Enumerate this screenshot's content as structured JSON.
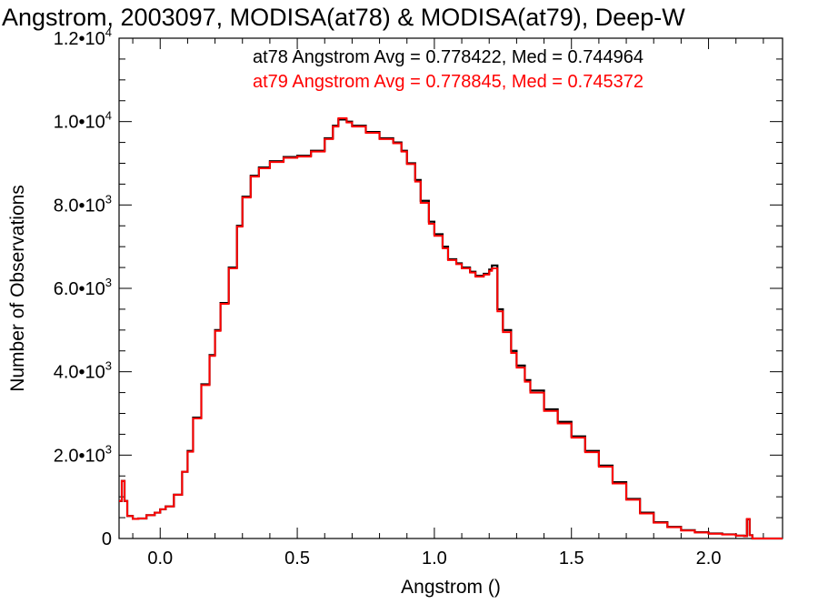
{
  "chart_data": {
    "type": "histogram",
    "title": "Angstrom, 2003097, MODISA(at78) & MODISA(at79), Deep-W",
    "xlabel": "Angstrom ()",
    "ylabel": "Number of Observations",
    "xlim": [
      -0.15,
      2.27
    ],
    "ylim": [
      0,
      12000
    ],
    "x_ticks": [
      {
        "value": 0.0,
        "label": "0.0"
      },
      {
        "value": 0.5,
        "label": "0.5"
      },
      {
        "value": 1.0,
        "label": "1.0"
      },
      {
        "value": 1.5,
        "label": "1.5"
      },
      {
        "value": 2.0,
        "label": "2.0"
      }
    ],
    "y_ticks": [
      {
        "value": 0,
        "mant": "0",
        "exp": ""
      },
      {
        "value": 2000,
        "mant": "2.0•10",
        "exp": "3"
      },
      {
        "value": 4000,
        "mant": "4.0•10",
        "exp": "3"
      },
      {
        "value": 6000,
        "mant": "6.0•10",
        "exp": "3"
      },
      {
        "value": 8000,
        "mant": "8.0•10",
        "exp": "3"
      },
      {
        "value": 10000,
        "mant": "1.0•10",
        "exp": "4"
      },
      {
        "value": 12000,
        "mant": "1.2•10",
        "exp": "4"
      }
    ],
    "annotations": [
      {
        "text": "at78 Angstrom Avg = 0.778422, Med = 0.744964",
        "color": "#000000"
      },
      {
        "text": "at79 Angstrom Avg = 0.778845, Med = 0.745372",
        "color": "#ff0000"
      }
    ],
    "series": [
      {
        "name": "at78",
        "color": "#000000",
        "points": [
          [
            -0.15,
            900
          ],
          [
            -0.14,
            1380
          ],
          [
            -0.13,
            900
          ],
          [
            -0.12,
            540
          ],
          [
            -0.1,
            470
          ],
          [
            -0.08,
            480
          ],
          [
            -0.05,
            560
          ],
          [
            -0.02,
            620
          ],
          [
            0.0,
            700
          ],
          [
            0.02,
            770
          ],
          [
            0.05,
            1050
          ],
          [
            0.08,
            1600
          ],
          [
            0.1,
            2100
          ],
          [
            0.12,
            2900
          ],
          [
            0.15,
            3700
          ],
          [
            0.18,
            4400
          ],
          [
            0.2,
            5000
          ],
          [
            0.22,
            5650
          ],
          [
            0.25,
            6500
          ],
          [
            0.28,
            7500
          ],
          [
            0.3,
            8200
          ],
          [
            0.33,
            8700
          ],
          [
            0.36,
            8900
          ],
          [
            0.4,
            9050
          ],
          [
            0.45,
            9150
          ],
          [
            0.5,
            9180
          ],
          [
            0.55,
            9300
          ],
          [
            0.6,
            9600
          ],
          [
            0.63,
            9900
          ],
          [
            0.65,
            10050
          ],
          [
            0.68,
            10000
          ],
          [
            0.7,
            9900
          ],
          [
            0.75,
            9750
          ],
          [
            0.8,
            9600
          ],
          [
            0.85,
            9500
          ],
          [
            0.88,
            9300
          ],
          [
            0.9,
            9000
          ],
          [
            0.93,
            8600
          ],
          [
            0.95,
            8100
          ],
          [
            0.98,
            7600
          ],
          [
            1.0,
            7300
          ],
          [
            1.03,
            7000
          ],
          [
            1.05,
            6700
          ],
          [
            1.08,
            6600
          ],
          [
            1.1,
            6500
          ],
          [
            1.13,
            6400
          ],
          [
            1.15,
            6300
          ],
          [
            1.18,
            6350
          ],
          [
            1.2,
            6450
          ],
          [
            1.21,
            6550
          ],
          [
            1.23,
            5500
          ],
          [
            1.25,
            5000
          ],
          [
            1.28,
            4500
          ],
          [
            1.3,
            4150
          ],
          [
            1.33,
            3800
          ],
          [
            1.35,
            3550
          ],
          [
            1.4,
            3100
          ],
          [
            1.45,
            2800
          ],
          [
            1.5,
            2450
          ],
          [
            1.55,
            2100
          ],
          [
            1.6,
            1750
          ],
          [
            1.65,
            1350
          ],
          [
            1.7,
            950
          ],
          [
            1.75,
            620
          ],
          [
            1.8,
            390
          ],
          [
            1.85,
            280
          ],
          [
            1.9,
            200
          ],
          [
            1.95,
            150
          ],
          [
            2.0,
            120
          ],
          [
            2.05,
            100
          ],
          [
            2.1,
            70
          ],
          [
            2.13,
            60
          ],
          [
            2.14,
            460
          ],
          [
            2.15,
            80
          ],
          [
            2.16,
            0
          ],
          [
            2.27,
            0
          ]
        ]
      },
      {
        "name": "at79",
        "color": "#ff0000",
        "points": [
          [
            -0.15,
            900
          ],
          [
            -0.14,
            1380
          ],
          [
            -0.13,
            900
          ],
          [
            -0.12,
            540
          ],
          [
            -0.1,
            470
          ],
          [
            -0.08,
            480
          ],
          [
            -0.05,
            560
          ],
          [
            -0.02,
            620
          ],
          [
            0.0,
            700
          ],
          [
            0.02,
            770
          ],
          [
            0.05,
            1050
          ],
          [
            0.08,
            1600
          ],
          [
            0.1,
            2080
          ],
          [
            0.12,
            2880
          ],
          [
            0.15,
            3680
          ],
          [
            0.18,
            4380
          ],
          [
            0.2,
            4980
          ],
          [
            0.22,
            5630
          ],
          [
            0.25,
            6480
          ],
          [
            0.28,
            7480
          ],
          [
            0.3,
            8180
          ],
          [
            0.33,
            8680
          ],
          [
            0.36,
            8880
          ],
          [
            0.4,
            9030
          ],
          [
            0.45,
            9130
          ],
          [
            0.5,
            9160
          ],
          [
            0.55,
            9280
          ],
          [
            0.6,
            9580
          ],
          [
            0.63,
            9880
          ],
          [
            0.65,
            10080
          ],
          [
            0.68,
            9980
          ],
          [
            0.7,
            9880
          ],
          [
            0.75,
            9730
          ],
          [
            0.8,
            9580
          ],
          [
            0.85,
            9480
          ],
          [
            0.88,
            9280
          ],
          [
            0.9,
            8980
          ],
          [
            0.93,
            8560
          ],
          [
            0.95,
            8050
          ],
          [
            0.98,
            7550
          ],
          [
            1.0,
            7260
          ],
          [
            1.03,
            6960
          ],
          [
            1.05,
            6680
          ],
          [
            1.08,
            6580
          ],
          [
            1.1,
            6480
          ],
          [
            1.13,
            6380
          ],
          [
            1.15,
            6280
          ],
          [
            1.18,
            6330
          ],
          [
            1.2,
            6420
          ],
          [
            1.21,
            6480
          ],
          [
            1.23,
            5450
          ],
          [
            1.25,
            4950
          ],
          [
            1.28,
            4450
          ],
          [
            1.3,
            4100
          ],
          [
            1.33,
            3760
          ],
          [
            1.35,
            3500
          ],
          [
            1.4,
            3060
          ],
          [
            1.45,
            2760
          ],
          [
            1.5,
            2420
          ],
          [
            1.55,
            2070
          ],
          [
            1.6,
            1720
          ],
          [
            1.65,
            1320
          ],
          [
            1.7,
            930
          ],
          [
            1.75,
            600
          ],
          [
            1.8,
            380
          ],
          [
            1.85,
            270
          ],
          [
            1.9,
            190
          ],
          [
            1.95,
            145
          ],
          [
            2.0,
            115
          ],
          [
            2.05,
            95
          ],
          [
            2.1,
            68
          ],
          [
            2.13,
            58
          ],
          [
            2.14,
            470
          ],
          [
            2.15,
            75
          ],
          [
            2.16,
            0
          ],
          [
            2.27,
            0
          ]
        ]
      }
    ]
  }
}
